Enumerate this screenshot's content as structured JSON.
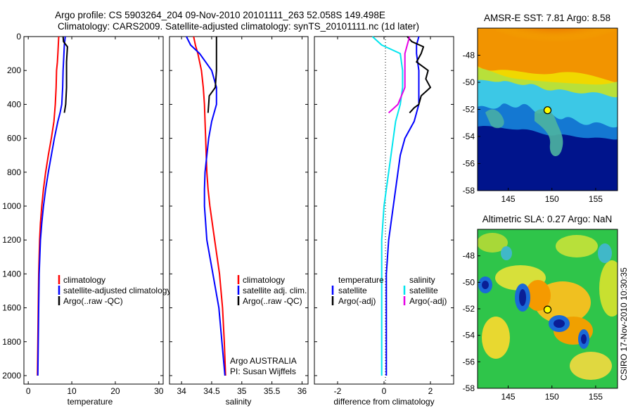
{
  "header": {
    "line1": "Argo profile: CS 5903264_204 09-Nov-2010 20101111_263 52.058S 149.498E",
    "line2": "Climatology: CARS2009. Satellite-adjusted climatology: synTS_20101111.nc (1d later)"
  },
  "colors": {
    "red": "#ff0000",
    "blue": "#0000ff",
    "black": "#000000",
    "cyan": "#00e5ee",
    "magenta": "#e600e6"
  },
  "chart_data": [
    {
      "type": "line",
      "xlabel": "temperature",
      "xlim": [
        -1,
        31
      ],
      "xticks": [
        "0",
        "10",
        "20",
        "30"
      ],
      "ylim": [
        2050,
        0
      ],
      "yticks": [
        "0",
        "200",
        "400",
        "600",
        "800",
        "1000",
        "1200",
        "1400",
        "1600",
        "1800",
        "2000"
      ],
      "legend": [
        "climatology",
        "satellite-adjusted climatology",
        "Argo(..raw -QC)"
      ],
      "series": [
        {
          "name": "climatology",
          "color": "red",
          "depth": [
            0,
            50,
            100,
            150,
            200,
            300,
            400,
            500,
            600,
            700,
            800,
            900,
            1000,
            1100,
            1200,
            1400,
            1600,
            1800,
            2000
          ],
          "values": [
            7.0,
            6.9,
            6.8,
            6.7,
            6.5,
            6.4,
            6.2,
            5.9,
            5.3,
            4.6,
            4.0,
            3.5,
            3.1,
            2.8,
            2.6,
            2.4,
            2.3,
            2.2,
            2.1
          ]
        },
        {
          "name": "satellite-adjusted climatology",
          "color": "blue",
          "depth": [
            0,
            50,
            100,
            200,
            300,
            400,
            450,
            500,
            600,
            700,
            800,
            900,
            1000,
            1100,
            1200,
            1400,
            1600,
            1800,
            2000
          ],
          "values": [
            8.5,
            8.3,
            8.2,
            8.0,
            7.9,
            7.7,
            7.3,
            6.8,
            6.0,
            5.3,
            4.6,
            4.0,
            3.5,
            3.1,
            2.8,
            2.5,
            2.4,
            2.3,
            2.2
          ]
        },
        {
          "name": "Argo(..raw -QC)",
          "color": "black",
          "depth": [
            0,
            30,
            60,
            100,
            150,
            200,
            300,
            400,
            450
          ],
          "values": [
            8.0,
            8.1,
            9.0,
            8.9,
            8.8,
            8.8,
            8.8,
            8.6,
            8.3
          ]
        }
      ]
    },
    {
      "type": "line",
      "xlabel": "salinity",
      "xlim": [
        33.8,
        36.1
      ],
      "xticks": [
        "34",
        "34.5",
        "35",
        "35.5",
        "36"
      ],
      "ylim": [
        2050,
        0
      ],
      "legend": [
        "climatology",
        "satellite adj. clim.",
        "Argo(..raw -QC)"
      ],
      "annotation": [
        "Argo AUSTRALIA",
        "PI: Susan Wijffels"
      ],
      "series": [
        {
          "name": "climatology",
          "color": "red",
          "depth": [
            0,
            50,
            100,
            200,
            300,
            400,
            500,
            600,
            700,
            800,
            900,
            1000,
            1200,
            1400,
            1600,
            1800,
            2000
          ],
          "values": [
            34.2,
            34.23,
            34.27,
            34.33,
            34.36,
            34.38,
            34.39,
            34.4,
            34.41,
            34.42,
            34.44,
            34.47,
            34.55,
            34.63,
            34.68,
            34.71,
            34.73
          ]
        },
        {
          "name": "satellite adj. clim.",
          "color": "blue",
          "depth": [
            0,
            50,
            100,
            200,
            300,
            400,
            500,
            600,
            700,
            800,
            900,
            1000,
            1200,
            1400,
            1600,
            1800,
            2000
          ],
          "values": [
            34.08,
            34.15,
            34.3,
            34.5,
            34.58,
            34.58,
            34.5,
            34.45,
            34.42,
            34.39,
            34.38,
            34.38,
            34.42,
            34.52,
            34.62,
            34.67,
            34.72
          ]
        },
        {
          "name": "Argo(..raw -QC)",
          "color": "black",
          "depth": [
            0,
            50,
            100,
            200,
            300,
            350,
            400,
            450
          ],
          "values": [
            34.58,
            34.58,
            34.58,
            34.58,
            34.56,
            34.46,
            34.45,
            34.44
          ]
        }
      ]
    },
    {
      "type": "line",
      "xlabel": "difference from climatology",
      "xlim": [
        -3,
        3
      ],
      "xticks": [
        "-2",
        "0",
        "2"
      ],
      "ylim": [
        2050,
        0
      ],
      "zero_line": true,
      "legend_columns": [
        {
          "header": "temperature",
          "items": [
            "satellite",
            "Argo(-adj)"
          ]
        },
        {
          "header": "salinity",
          "items": [
            "satellite",
            "Argo(-adj)"
          ]
        }
      ],
      "series": [
        {
          "name": "satellite",
          "group": "temperature",
          "color": "blue",
          "depth": [
            0,
            50,
            100,
            200,
            300,
            400,
            450,
            500,
            600,
            700,
            800,
            900,
            1000,
            1200,
            1400,
            1600,
            1800,
            2000
          ],
          "values": [
            1.5,
            1.4,
            1.4,
            1.5,
            1.5,
            1.5,
            1.4,
            1.3,
            0.9,
            0.7,
            0.6,
            0.5,
            0.4,
            0.2,
            0.1,
            0.1,
            0.1,
            0.1
          ]
        },
        {
          "name": "Argo(-adj)",
          "group": "temperature",
          "color": "black",
          "depth": [
            0,
            30,
            60,
            100,
            150,
            200,
            250,
            300,
            350,
            400,
            420,
            450
          ],
          "values": [
            1.0,
            1.2,
            1.7,
            1.6,
            1.4,
            1.9,
            1.8,
            2.0,
            1.6,
            1.5,
            1.3,
            1.1
          ]
        },
        {
          "name": "satellite",
          "group": "salinity",
          "color": "cyan",
          "depth": [
            0,
            50,
            100,
            200,
            300,
            400,
            500,
            600,
            700,
            800,
            900,
            1000,
            1200,
            1400,
            1600,
            1800,
            2000
          ],
          "values": [
            -0.5,
            -0.1,
            0.7,
            0.8,
            0.8,
            0.7,
            0.5,
            0.4,
            0.3,
            0.2,
            0.1,
            0.0,
            -0.1,
            -0.1,
            -0.1,
            -0.1,
            -0.1
          ]
        },
        {
          "name": "Argo(-adj)",
          "group": "salinity",
          "color": "magenta",
          "depth": [
            0,
            50,
            100,
            200,
            300,
            400,
            450
          ],
          "values": [
            1.1,
            1.0,
            0.9,
            0.9,
            0.9,
            0.6,
            0.2
          ]
        }
      ]
    },
    {
      "type": "heatmap",
      "title": "AMSR-E SST: 7.81 Argo: 8.58",
      "xticks": [
        "145",
        "150",
        "155"
      ],
      "yticks": [
        "-48",
        "-50",
        "-52",
        "-54",
        "-56",
        "-58"
      ],
      "xlim": [
        141.5,
        157.5
      ],
      "ylim": [
        -58,
        -46
      ],
      "marker": {
        "lon": 149.5,
        "lat": -52.06
      }
    },
    {
      "type": "heatmap",
      "title": "Altimetric SLA: 0.27 Argo: NaN",
      "xticks": [
        "145",
        "150",
        "155"
      ],
      "yticks": [
        "-48",
        "-50",
        "-52",
        "-54",
        "-56",
        "-58"
      ],
      "xlim": [
        141.5,
        157.5
      ],
      "ylim": [
        -58,
        -46
      ],
      "marker": {
        "lon": 149.5,
        "lat": -52.06
      }
    }
  ],
  "footer": {
    "stamp": "CSIRO 17-Nov-2010 10:30:35"
  }
}
